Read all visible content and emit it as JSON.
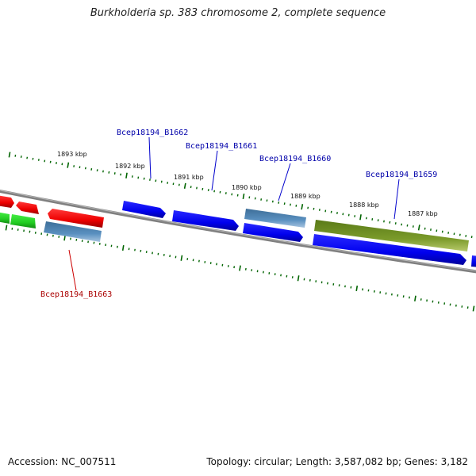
{
  "title": "Burkholderia sp. 383 chromosome 2, complete sequence",
  "footer": {
    "accession": "Accession: NC_007511",
    "summary": "Topology: circular; Length: 3,587,082 bp; Genes: 3,182"
  },
  "colors": {
    "forward_cds": "#0000ee",
    "reverse_cds": "#ee0000",
    "steelblue_cds": "#4682b4",
    "olive_cds": "#6b8e23",
    "green_cds": "#22cc22",
    "backbone": "#808080",
    "ticks": "#006400",
    "label_forward": "#0000aa",
    "label_reverse": "#aa0000"
  },
  "scale_labels": [
    "1893 kbp",
    "1892 kbp",
    "1891 kbp",
    "1890 kbp",
    "1889 kbp",
    "1888 kbp",
    "1887 kbp"
  ],
  "gene_labels": [
    {
      "text": "Bcep18194_B1662",
      "color": "#0000aa"
    },
    {
      "text": "Bcep18194_B1661",
      "color": "#0000aa"
    },
    {
      "text": "Bcep18194_B1660",
      "color": "#0000aa"
    },
    {
      "text": "Bcep18194_B1659",
      "color": "#0000aa"
    },
    {
      "text": "Bcep18194_B1663",
      "color": "#aa0000"
    }
  ]
}
